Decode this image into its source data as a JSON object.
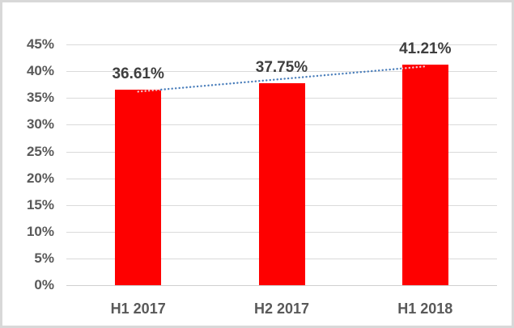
{
  "chart_data": {
    "type": "bar",
    "title": "",
    "categories": [
      "H1 2017",
      "H2 2017",
      "H1 2018"
    ],
    "values": [
      36.61,
      37.75,
      41.21
    ],
    "data_labels": [
      "36.61%",
      "37.75%",
      "41.21%"
    ],
    "series": [
      {
        "name": "unlabeled-red-series",
        "values": [
          36.61,
          37.75,
          41.21
        ]
      }
    ],
    "xlabel": "",
    "ylabel": "",
    "ylim": [
      0,
      45
    ],
    "y_tick_step": 5,
    "y_tick_labels": [
      "0%",
      "5%",
      "10%",
      "15%",
      "20%",
      "25%",
      "30%",
      "35%",
      "40%",
      "45%"
    ],
    "grid": true,
    "legend": "none",
    "colors": {
      "bar": "#fe0000",
      "data_label_text": "#3f3f3f",
      "axis_text": "#595959",
      "gridline": "#dadada",
      "axis_line": "#cfcfcf",
      "trendline": "#4a7ebb",
      "trendline_over_bar": "#f0c6ce",
      "figure_border": "#d8d8d8",
      "background": "#ffffff"
    },
    "trendline": {
      "type": "linear",
      "style": "dotted",
      "start_value": 36.2,
      "end_value": 40.9,
      "spans": "first bar center to last bar center"
    }
  }
}
